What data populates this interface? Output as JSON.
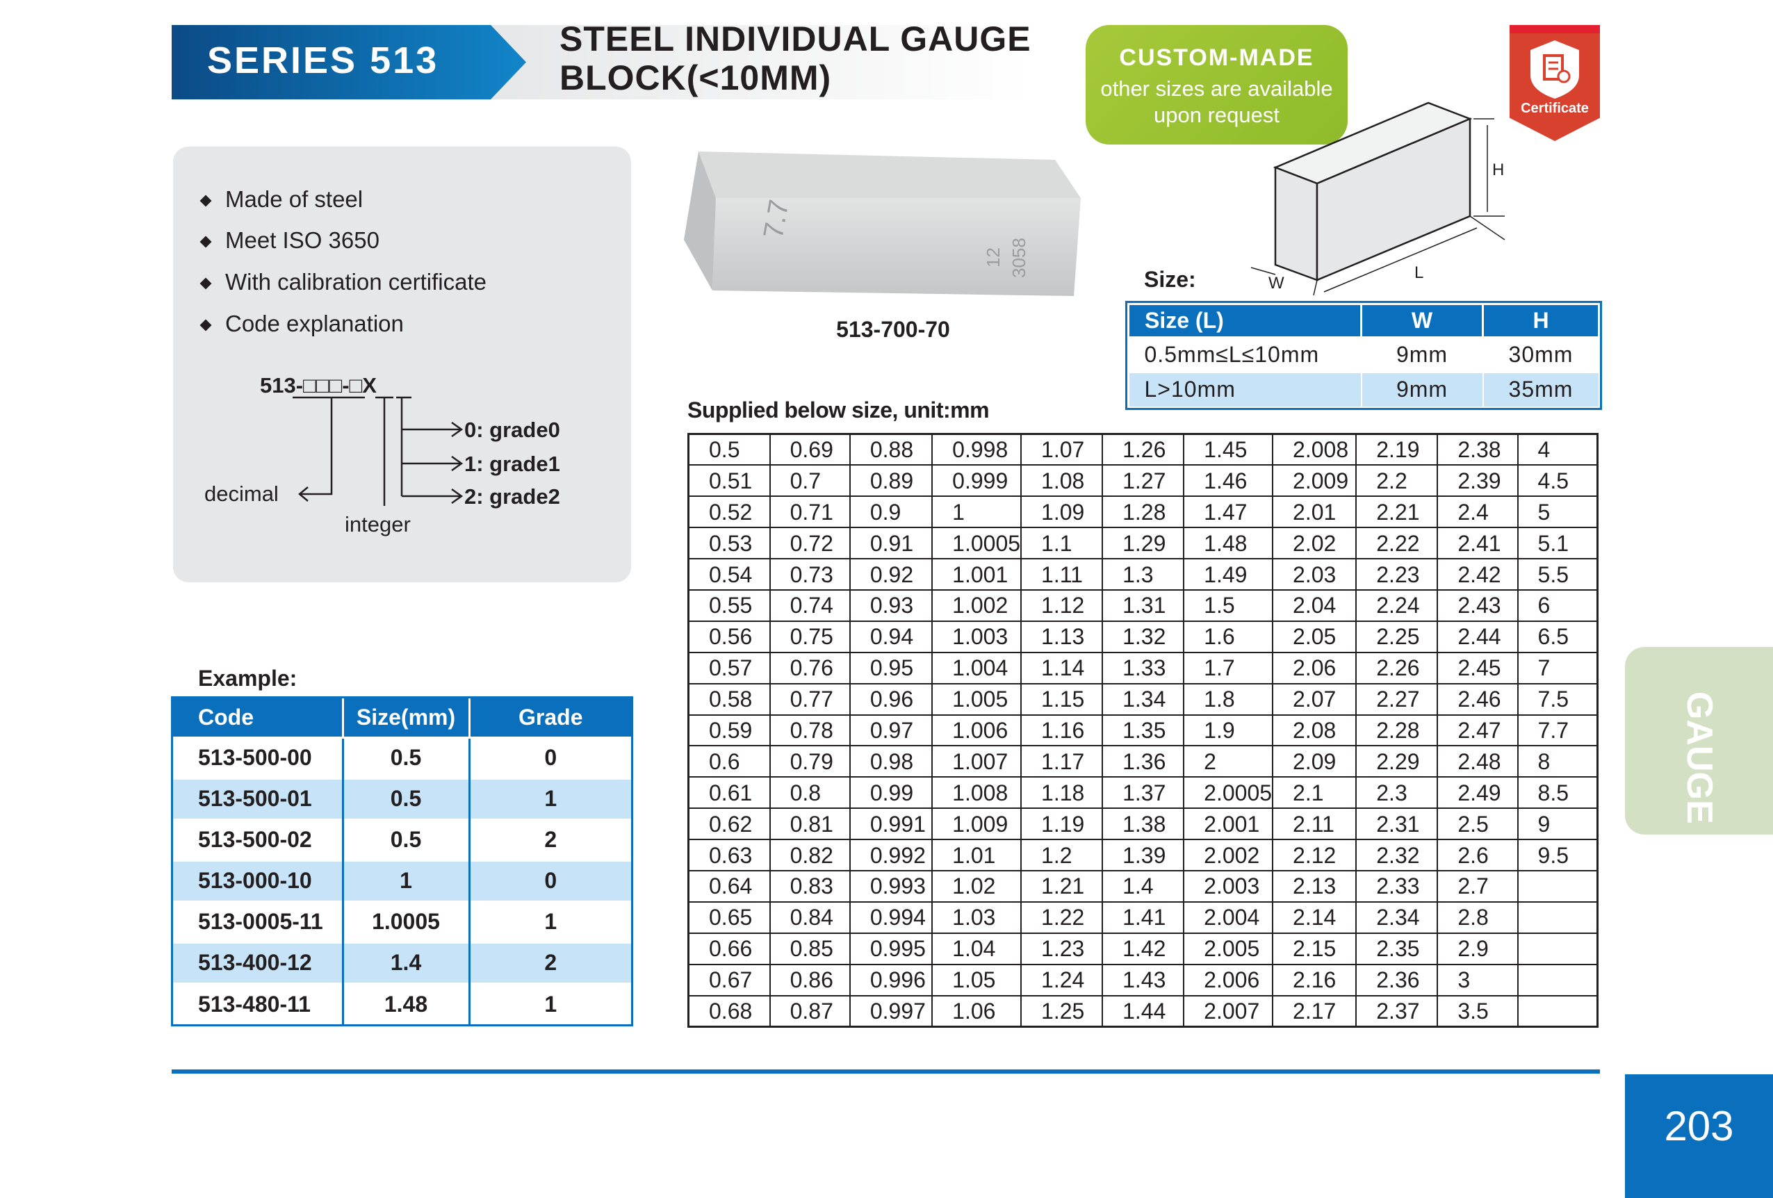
{
  "header": {
    "series": "SERIES 513",
    "title_line1": "STEEL INDIVIDUAL GAUGE",
    "title_line2": "BLOCK(<10MM)"
  },
  "custom_badge": {
    "heading": "CUSTOM-MADE",
    "line1": "other sizes are available",
    "line2": "upon request",
    "color": "#9bc232"
  },
  "certificate": {
    "label": "Certificate",
    "icon": "certificate-shield-icon",
    "color": "#d9412f"
  },
  "features": [
    "Made of steel",
    "Meet ISO 3650",
    "With calibration certificate",
    "Code explanation"
  ],
  "code_explanation": {
    "code": "513-□□□-□X",
    "decimal": "decimal",
    "integer": "integer",
    "grades": [
      "0: grade0",
      "1: grade1",
      "2: grade2"
    ]
  },
  "product_image": {
    "caption": "513-700-70",
    "markings": [
      "7.7",
      "12",
      "3058"
    ]
  },
  "dimension_diagram": {
    "size_label": "Size:",
    "labels": {
      "w": "W",
      "l": "L",
      "h": "H"
    }
  },
  "size_table": {
    "headers": [
      "Size (L)",
      "W",
      "H"
    ],
    "rows": [
      [
        "0.5mm≤L≤10mm",
        "9mm",
        "30mm"
      ],
      [
        "L>10mm",
        "9mm",
        "35mm"
      ]
    ]
  },
  "supplied": {
    "label": "Supplied below size, unit:mm",
    "rows": [
      [
        "0.5",
        "0.69",
        "0.88",
        "0.998",
        "1.07",
        "1.26",
        "1.45",
        "2.008",
        "2.19",
        "2.38",
        "4"
      ],
      [
        "0.51",
        "0.7",
        "0.89",
        "0.999",
        "1.08",
        "1.27",
        "1.46",
        "2.009",
        "2.2",
        "2.39",
        "4.5"
      ],
      [
        "0.52",
        "0.71",
        "0.9",
        "1",
        "1.09",
        "1.28",
        "1.47",
        "2.01",
        "2.21",
        "2.4",
        "5"
      ],
      [
        "0.53",
        "0.72",
        "0.91",
        "1.0005",
        "1.1",
        "1.29",
        "1.48",
        "2.02",
        "2.22",
        "2.41",
        "5.1"
      ],
      [
        "0.54",
        "0.73",
        "0.92",
        "1.001",
        "1.11",
        "1.3",
        "1.49",
        "2.03",
        "2.23",
        "2.42",
        "5.5"
      ],
      [
        "0.55",
        "0.74",
        "0.93",
        "1.002",
        "1.12",
        "1.31",
        "1.5",
        "2.04",
        "2.24",
        "2.43",
        "6"
      ],
      [
        "0.56",
        "0.75",
        "0.94",
        "1.003",
        "1.13",
        "1.32",
        "1.6",
        "2.05",
        "2.25",
        "2.44",
        "6.5"
      ],
      [
        "0.57",
        "0.76",
        "0.95",
        "1.004",
        "1.14",
        "1.33",
        "1.7",
        "2.06",
        "2.26",
        "2.45",
        "7"
      ],
      [
        "0.58",
        "0.77",
        "0.96",
        "1.005",
        "1.15",
        "1.34",
        "1.8",
        "2.07",
        "2.27",
        "2.46",
        "7.5"
      ],
      [
        "0.59",
        "0.78",
        "0.97",
        "1.006",
        "1.16",
        "1.35",
        "1.9",
        "2.08",
        "2.28",
        "2.47",
        "7.7"
      ],
      [
        "0.6",
        "0.79",
        "0.98",
        "1.007",
        "1.17",
        "1.36",
        "2",
        "2.09",
        "2.29",
        "2.48",
        "8"
      ],
      [
        "0.61",
        "0.8",
        "0.99",
        "1.008",
        "1.18",
        "1.37",
        "2.0005",
        "2.1",
        "2.3",
        "2.49",
        "8.5"
      ],
      [
        "0.62",
        "0.81",
        "0.991",
        "1.009",
        "1.19",
        "1.38",
        "2.001",
        "2.11",
        "2.31",
        "2.5",
        "9"
      ],
      [
        "0.63",
        "0.82",
        "0.992",
        "1.01",
        "1.2",
        "1.39",
        "2.002",
        "2.12",
        "2.32",
        "2.6",
        "9.5"
      ],
      [
        "0.64",
        "0.83",
        "0.993",
        "1.02",
        "1.21",
        "1.4",
        "2.003",
        "2.13",
        "2.33",
        "2.7",
        ""
      ],
      [
        "0.65",
        "0.84",
        "0.994",
        "1.03",
        "1.22",
        "1.41",
        "2.004",
        "2.14",
        "2.34",
        "2.8",
        ""
      ],
      [
        "0.66",
        "0.85",
        "0.995",
        "1.04",
        "1.23",
        "1.42",
        "2.005",
        "2.15",
        "2.35",
        "2.9",
        ""
      ],
      [
        "0.67",
        "0.86",
        "0.996",
        "1.05",
        "1.24",
        "1.43",
        "2.006",
        "2.16",
        "2.36",
        "3",
        ""
      ],
      [
        "0.68",
        "0.87",
        "0.997",
        "1.06",
        "1.25",
        "1.44",
        "2.007",
        "2.17",
        "2.37",
        "3.5",
        ""
      ]
    ]
  },
  "example": {
    "label": "Example:",
    "headers": [
      "Code",
      "Size(mm)",
      "Grade"
    ],
    "rows": [
      [
        "513-500-00",
        "0.5",
        "0"
      ],
      [
        "513-500-01",
        "0.5",
        "1"
      ],
      [
        "513-500-02",
        "0.5",
        "2"
      ],
      [
        "513-000-10",
        "1",
        "0"
      ],
      [
        "513-0005-11",
        "1.0005",
        "1"
      ],
      [
        "513-400-12",
        "1.4",
        "2"
      ],
      [
        "513-480-11",
        "1.48",
        "1"
      ]
    ]
  },
  "side_tab": {
    "label": "GAUGE"
  },
  "page_number": "203",
  "colors": {
    "brand_blue": "#0a70bd",
    "light_blue": "#c6e3f7",
    "panel_gray": "#e6e7e8"
  }
}
